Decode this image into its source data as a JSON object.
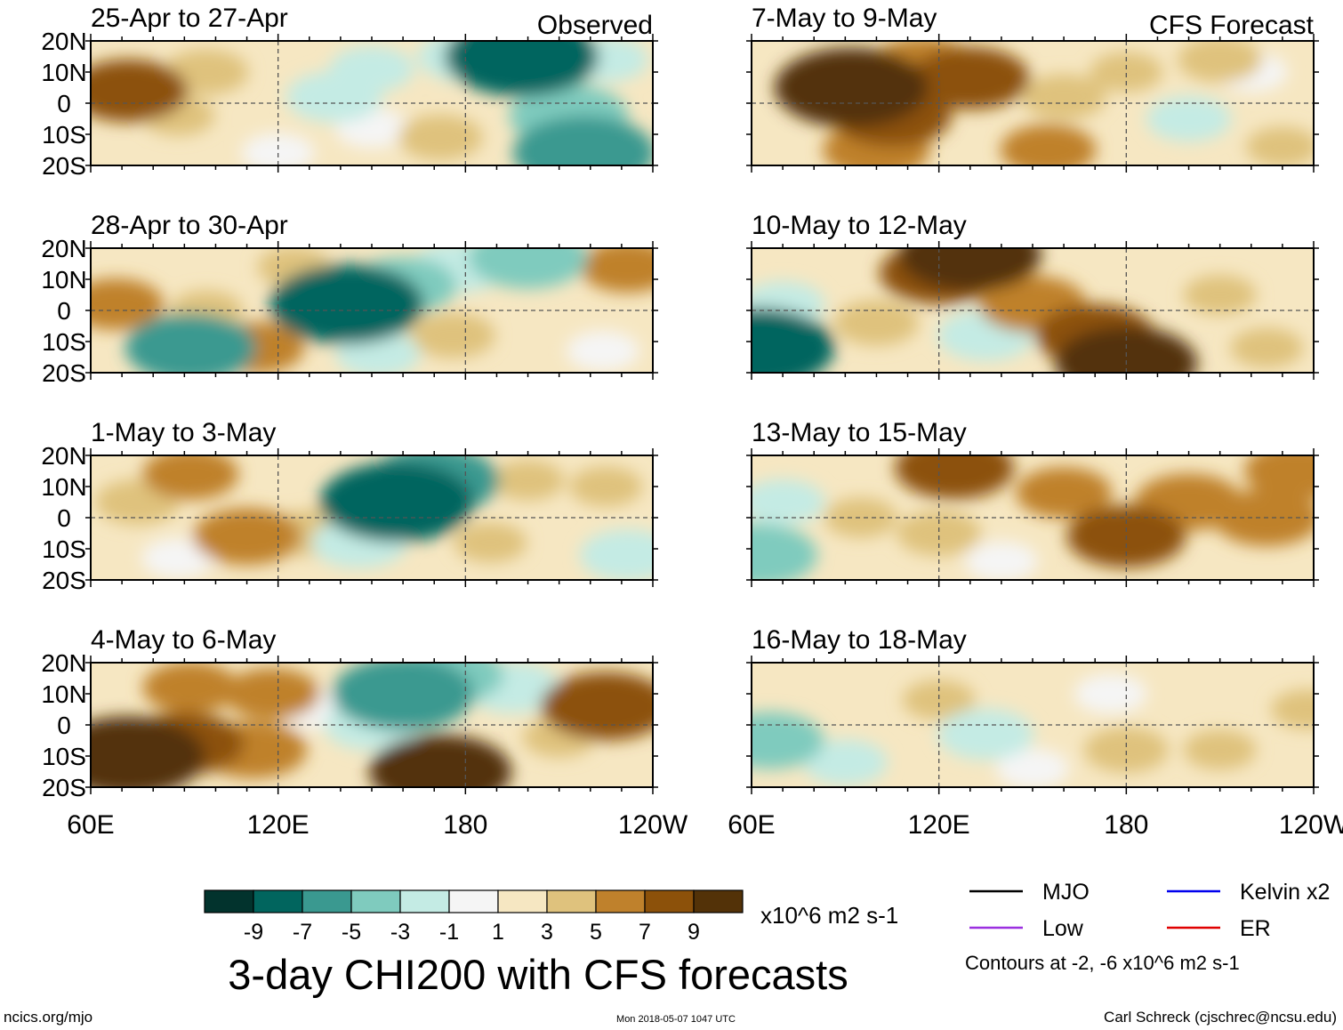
{
  "chart_data": {
    "type": "heatmap",
    "title": "3-day CHI200 with CFS forecasts",
    "column_labels": [
      "Observed",
      "CFS Forecast"
    ],
    "x_ticks": [
      "60E",
      "120E",
      "180",
      "120W"
    ],
    "y_ticks": [
      "20N",
      "10N",
      "0",
      "10S",
      "20S"
    ],
    "xlim_deg_east": [
      60,
      240
    ],
    "ylim_deg_north": [
      -20,
      20
    ],
    "panels": [
      {
        "period": "25-Apr to 27-Apr",
        "column": "Observed",
        "row": 0,
        "anomalies": [
          {
            "lon": 72,
            "lat": 4,
            "value": 6
          },
          {
            "lon": 97,
            "lat": 10,
            "value": 3
          },
          {
            "lon": 138,
            "lat": 2,
            "value": -4
          },
          {
            "lon": 150,
            "lat": 11,
            "value": -3
          },
          {
            "lon": 180,
            "lat": 15,
            "value": -4
          },
          {
            "lon": 198,
            "lat": 15,
            "value": -9
          },
          {
            "lon": 213,
            "lat": -4,
            "value": -6
          },
          {
            "lon": 218,
            "lat": -16,
            "value": -8
          },
          {
            "lon": 88,
            "lat": -4,
            "value": 2
          },
          {
            "lon": 120,
            "lat": -16,
            "value": -2
          },
          {
            "lon": 172,
            "lat": -11,
            "value": 3
          },
          {
            "lon": 225,
            "lat": 14,
            "value": -3
          },
          {
            "lon": 150,
            "lat": -8,
            "value": -2
          }
        ]
      },
      {
        "period": "28-Apr to 30-Apr",
        "column": "Observed",
        "row": 1,
        "anomalies": [
          {
            "lon": 68,
            "lat": 2,
            "value": 4
          },
          {
            "lon": 92,
            "lat": -12,
            "value": -7
          },
          {
            "lon": 97,
            "lat": 0,
            "value": 2
          },
          {
            "lon": 113,
            "lat": -12,
            "value": 4
          },
          {
            "lon": 142,
            "lat": 2,
            "value": -9
          },
          {
            "lon": 160,
            "lat": 8,
            "value": -5
          },
          {
            "lon": 178,
            "lat": 14,
            "value": -4
          },
          {
            "lon": 200,
            "lat": 17,
            "value": -6
          },
          {
            "lon": 232,
            "lat": 14,
            "value": 4
          },
          {
            "lon": 176,
            "lat": -8,
            "value": 3
          },
          {
            "lon": 152,
            "lat": -14,
            "value": -3
          },
          {
            "lon": 224,
            "lat": -13,
            "value": -2
          },
          {
            "lon": 125,
            "lat": 14,
            "value": 2
          }
        ]
      },
      {
        "period": "1-May to 3-May",
        "column": "Observed",
        "row": 2,
        "anomalies": [
          {
            "lon": 75,
            "lat": 5,
            "value": 3
          },
          {
            "lon": 92,
            "lat": 14,
            "value": 4
          },
          {
            "lon": 110,
            "lat": -6,
            "value": 5
          },
          {
            "lon": 88,
            "lat": -13,
            "value": -2
          },
          {
            "lon": 130,
            "lat": -5,
            "value": 3
          },
          {
            "lon": 158,
            "lat": 5,
            "value": -9
          },
          {
            "lon": 170,
            "lat": 12,
            "value": -7
          },
          {
            "lon": 146,
            "lat": -8,
            "value": -4
          },
          {
            "lon": 200,
            "lat": 12,
            "value": 2
          },
          {
            "lon": 188,
            "lat": -8,
            "value": 2
          },
          {
            "lon": 232,
            "lat": -12,
            "value": -4
          },
          {
            "lon": 225,
            "lat": 10,
            "value": 2
          }
        ]
      },
      {
        "period": "4-May to 6-May",
        "column": "Observed",
        "row": 3,
        "anomalies": [
          {
            "lon": 72,
            "lat": -10,
            "value": 9
          },
          {
            "lon": 90,
            "lat": -6,
            "value": 6
          },
          {
            "lon": 112,
            "lat": -8,
            "value": 5
          },
          {
            "lon": 92,
            "lat": 12,
            "value": 4
          },
          {
            "lon": 118,
            "lat": 10,
            "value": 4
          },
          {
            "lon": 160,
            "lat": 10,
            "value": -8
          },
          {
            "lon": 150,
            "lat": 0,
            "value": -4
          },
          {
            "lon": 175,
            "lat": 16,
            "value": -5
          },
          {
            "lon": 195,
            "lat": 12,
            "value": -4
          },
          {
            "lon": 172,
            "lat": -15,
            "value": 8
          },
          {
            "lon": 225,
            "lat": 6,
            "value": 7
          },
          {
            "lon": 132,
            "lat": 5,
            "value": -2
          },
          {
            "lon": 210,
            "lat": -4,
            "value": 2
          }
        ]
      },
      {
        "period": "7-May to 9-May",
        "column": "CFS Forecast",
        "row": 0,
        "anomalies": [
          {
            "lon": 92,
            "lat": 5,
            "value": 9
          },
          {
            "lon": 105,
            "lat": -4,
            "value": 6
          },
          {
            "lon": 115,
            "lat": 12,
            "value": 5
          },
          {
            "lon": 130,
            "lat": 8,
            "value": 6
          },
          {
            "lon": 100,
            "lat": -15,
            "value": 5
          },
          {
            "lon": 160,
            "lat": 2,
            "value": 3
          },
          {
            "lon": 180,
            "lat": 10,
            "value": 2
          },
          {
            "lon": 210,
            "lat": 14,
            "value": 3
          },
          {
            "lon": 200,
            "lat": -5,
            "value": -3
          },
          {
            "lon": 220,
            "lat": 10,
            "value": -2
          },
          {
            "lon": 155,
            "lat": -15,
            "value": 4
          },
          {
            "lon": 230,
            "lat": -14,
            "value": 2
          }
        ]
      },
      {
        "period": "10-May to 12-May",
        "column": "CFS Forecast",
        "row": 1,
        "anomalies": [
          {
            "lon": 62,
            "lat": -12,
            "value": -9
          },
          {
            "lon": 70,
            "lat": 2,
            "value": -3
          },
          {
            "lon": 120,
            "lat": 12,
            "value": 6
          },
          {
            "lon": 130,
            "lat": 18,
            "value": 8
          },
          {
            "lon": 150,
            "lat": 2,
            "value": 5
          },
          {
            "lon": 170,
            "lat": -8,
            "value": 6
          },
          {
            "lon": 180,
            "lat": -17,
            "value": 8
          },
          {
            "lon": 135,
            "lat": -8,
            "value": -4
          },
          {
            "lon": 100,
            "lat": -4,
            "value": 3
          },
          {
            "lon": 210,
            "lat": 5,
            "value": 2
          },
          {
            "lon": 225,
            "lat": -12,
            "value": 2
          }
        ]
      },
      {
        "period": "13-May to 15-May",
        "column": "CFS Forecast",
        "row": 2,
        "anomalies": [
          {
            "lon": 62,
            "lat": -12,
            "value": -6
          },
          {
            "lon": 70,
            "lat": 5,
            "value": -3
          },
          {
            "lon": 125,
            "lat": 16,
            "value": 6
          },
          {
            "lon": 160,
            "lat": 8,
            "value": 4
          },
          {
            "lon": 180,
            "lat": -6,
            "value": 6
          },
          {
            "lon": 200,
            "lat": 5,
            "value": 5
          },
          {
            "lon": 225,
            "lat": 0,
            "value": 5
          },
          {
            "lon": 95,
            "lat": 0,
            "value": 2
          },
          {
            "lon": 140,
            "lat": -14,
            "value": -2
          },
          {
            "lon": 120,
            "lat": -5,
            "value": 3
          },
          {
            "lon": 235,
            "lat": 15,
            "value": 5
          }
        ]
      },
      {
        "period": "16-May to 18-May",
        "column": "CFS Forecast",
        "row": 3,
        "anomalies": [
          {
            "lon": 66,
            "lat": -5,
            "value": -5
          },
          {
            "lon": 90,
            "lat": -12,
            "value": -3
          },
          {
            "lon": 135,
            "lat": -3,
            "value": -4
          },
          {
            "lon": 120,
            "lat": 8,
            "value": 2
          },
          {
            "lon": 175,
            "lat": 10,
            "value": -2
          },
          {
            "lon": 180,
            "lat": -8,
            "value": 3
          },
          {
            "lon": 210,
            "lat": -8,
            "value": 2
          },
          {
            "lon": 238,
            "lat": 5,
            "value": 2
          },
          {
            "lon": 150,
            "lat": -14,
            "value": -2
          }
        ]
      }
    ],
    "colorbar": {
      "colors": [
        "#02332d",
        "#01655e",
        "#3a9990",
        "#7fcbbe",
        "#c4ebe4",
        "#f5f5f5",
        "#f6e7c2",
        "#dfc27d",
        "#bf812c",
        "#8c510a",
        "#533208"
      ],
      "tick_labels": [
        "-9",
        "-7",
        "-5",
        "-3",
        "-1",
        "1",
        "3",
        "5",
        "7",
        "9"
      ],
      "units": "x10^6 m2 s-1"
    },
    "legend": [
      {
        "label": "MJO",
        "color": "#000000"
      },
      {
        "label": "Kelvin x2",
        "color": "#0000ee"
      },
      {
        "label": "Low",
        "color": "#9b30e0"
      },
      {
        "label": "ER",
        "color": "#e00000"
      }
    ],
    "contour_note": "Contours at -2, -6 x10^6 m2 s-1"
  },
  "footer": {
    "source": "ncics.org/mjo",
    "timestamp": "Mon 2018-05-07 1047 UTC",
    "credit": "Carl Schreck (cjschrec@ncsu.edu)"
  }
}
